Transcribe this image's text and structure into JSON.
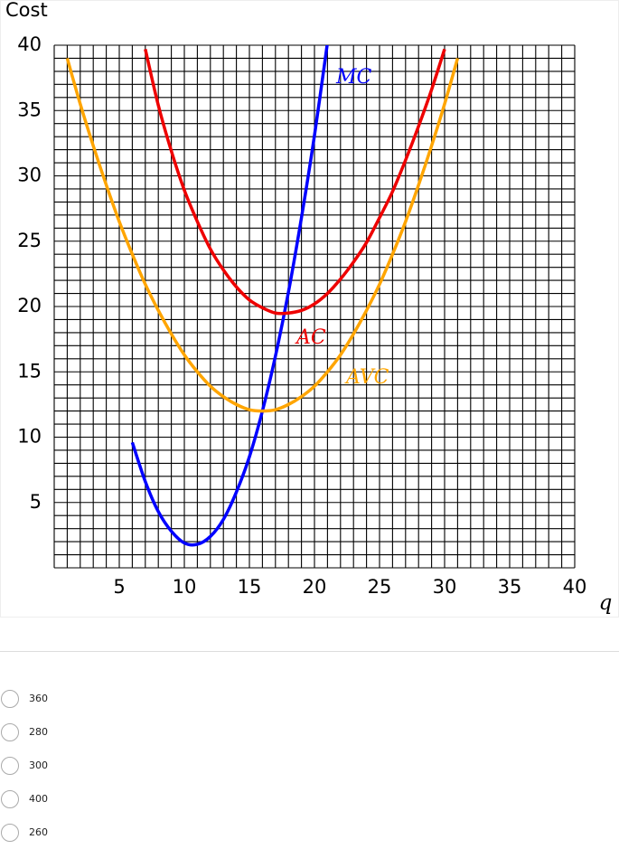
{
  "chart_data": {
    "type": "line",
    "y_label": "Cost",
    "x_label": "q",
    "xlim": [
      0,
      40
    ],
    "ylim": [
      0,
      40
    ],
    "xticks": [
      5,
      10,
      15,
      20,
      25,
      30,
      35,
      40
    ],
    "yticks": [
      5,
      10,
      15,
      20,
      25,
      30,
      35,
      40
    ],
    "xgrid": [
      0,
      1,
      2,
      3,
      4,
      5,
      6,
      7,
      8,
      9,
      10,
      11,
      12,
      13,
      14,
      15,
      16,
      17,
      18,
      19,
      20,
      21,
      22,
      23,
      24,
      25,
      26,
      27,
      28,
      29,
      30,
      31,
      32,
      33,
      34,
      35,
      36,
      37,
      38,
      39,
      40
    ],
    "ygrid": [
      0,
      1,
      2,
      3,
      4,
      5,
      6,
      7,
      8,
      9,
      10,
      11,
      12,
      13,
      14,
      15,
      16,
      17,
      18,
      19,
      20,
      21,
      22,
      23,
      24,
      25,
      26,
      27,
      28,
      29,
      30,
      31,
      32,
      33,
      34,
      35,
      36,
      37,
      38,
      39,
      40
    ],
    "series": [
      {
        "name": "MC",
        "color": "#0000ff",
        "x": [
          6,
          7,
          8,
          9,
          10,
          11,
          12,
          13,
          14,
          15,
          16,
          17,
          18,
          19,
          20,
          21
        ],
        "values": [
          9.6,
          6.6,
          4.3,
          2.8,
          1.9,
          1.8,
          2.4,
          3.7,
          5.8,
          8.5,
          12.0,
          16.2,
          21.1,
          26.8,
          33.1,
          40.2
        ]
      },
      {
        "name": "AC",
        "color": "#ee0000",
        "x": [
          7,
          8,
          9,
          10,
          11,
          12,
          13,
          14,
          15,
          16,
          17,
          18,
          19,
          20,
          21,
          22,
          23,
          24,
          25,
          26,
          27,
          28,
          29,
          30
        ],
        "values": [
          39.7,
          35.4,
          31.9,
          28.9,
          26.5,
          24.4,
          22.8,
          21.5,
          20.5,
          19.9,
          19.5,
          19.5,
          19.7,
          20.2,
          21.0,
          22.1,
          23.4,
          24.9,
          26.8,
          28.8,
          31.2,
          33.8,
          36.6,
          39.7
        ]
      },
      {
        "name": "AVC",
        "color": "#ffa500",
        "x": [
          1,
          2,
          3,
          4,
          5,
          6,
          7,
          8,
          9,
          10,
          11,
          12,
          13,
          14,
          15,
          16,
          17,
          18,
          19,
          20,
          21,
          22,
          23,
          24,
          25,
          26,
          27,
          28,
          29,
          30,
          31
        ],
        "values": [
          39.0,
          35.5,
          32.3,
          29.3,
          26.5,
          24.0,
          21.7,
          19.7,
          17.9,
          16.3,
          15.0,
          13.9,
          13.1,
          12.5,
          12.1,
          12.0,
          12.1,
          12.5,
          13.1,
          13.9,
          15.0,
          16.3,
          17.9,
          19.7,
          21.7,
          24.0,
          26.5,
          29.3,
          32.3,
          35.5,
          39.0
        ]
      }
    ]
  },
  "options": [
    "360",
    "280",
    "300",
    "400",
    "260"
  ]
}
